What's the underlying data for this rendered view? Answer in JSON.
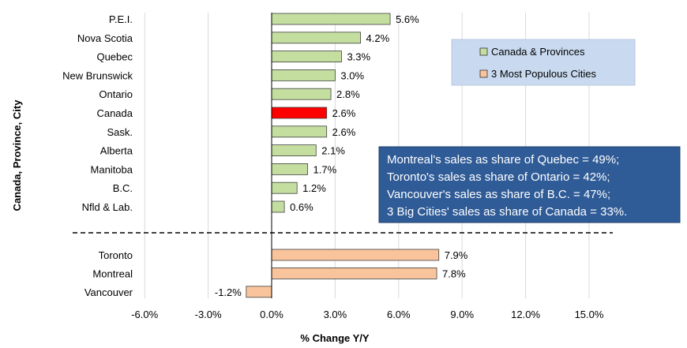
{
  "chart_data": {
    "type": "bar",
    "orientation": "horizontal",
    "xlabel": "% Change Y/Y",
    "ylabel": "Canada, Province, City",
    "xlim": [
      -6.0,
      15.0
    ],
    "x_ticks": [
      "-6.0%",
      "-3.0%",
      "0.0%",
      "3.0%",
      "6.0%",
      "9.0%",
      "12.0%",
      "15.0%"
    ],
    "grid": "vertical",
    "colors": {
      "provinces": "#c4dea0",
      "canada": "#ff0000",
      "cities": "#f9c49b",
      "annotation_bg": "#2f5b97",
      "legend_bg": "#c9daf0"
    },
    "series": [
      {
        "name": "Canada & Provinces",
        "color": "#c4dea0",
        "categories": [
          "P.E.I.",
          "Nova Scotia",
          "Quebec",
          "New Brunswick",
          "Ontario",
          "Canada",
          "Sask.",
          "Alberta",
          "Manitoba",
          "B.C.",
          "Nfld & Lab."
        ],
        "values": [
          5.6,
          4.2,
          3.3,
          3.0,
          2.8,
          2.6,
          2.6,
          2.1,
          1.7,
          1.2,
          0.6
        ],
        "labels": [
          "5.6%",
          "4.2%",
          "3.3%",
          "3.0%",
          "2.8%",
          "2.6%",
          "2.6%",
          "2.1%",
          "1.7%",
          "1.2%",
          "0.6%"
        ],
        "highlight": "Canada"
      },
      {
        "name": "3 Most Populous Cities",
        "color": "#f9c49b",
        "categories": [
          "Toronto",
          "Montreal",
          "Vancouver"
        ],
        "values": [
          7.9,
          7.8,
          -1.2
        ],
        "labels": [
          "7.9%",
          "7.8%",
          "-1.2%"
        ]
      }
    ],
    "legend": {
      "position": "top-right",
      "entries": [
        "Canada & Provinces",
        "3 Most Populous Cities"
      ]
    },
    "annotation": [
      "Montreal's sales as share of Quebec = 49%;",
      "Toronto's sales as share of Ontario = 42%;",
      "Vancouver's sales as share of B.C. = 47%;",
      "3 Big Cities' sales as share of Canada = 33%."
    ]
  }
}
